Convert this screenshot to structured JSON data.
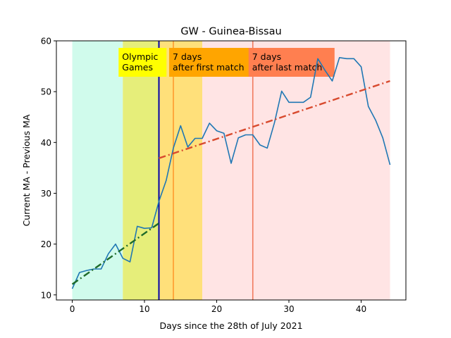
{
  "chart_data": {
    "type": "line",
    "title": "GW - Guinea-Bissau",
    "xlabel": "Days since the 28th of July 2021",
    "ylabel": "Current MA - Previous MA",
    "xlim": [
      -2.2,
      46.2
    ],
    "ylim": [
      9,
      60
    ],
    "xticks": [
      0,
      10,
      20,
      30,
      40
    ],
    "yticks": [
      10,
      20,
      30,
      40,
      50,
      60
    ],
    "series": [
      {
        "name": "MA difference",
        "color": "#1f77b4",
        "x": [
          0,
          1,
          2,
          3,
          4,
          5,
          6,
          7,
          8,
          9,
          10,
          11,
          12,
          13,
          14,
          15,
          16,
          17,
          18,
          19,
          20,
          21,
          22,
          23,
          24,
          25,
          26,
          27,
          28,
          29,
          30,
          31,
          32,
          33,
          34,
          35,
          36,
          37,
          38,
          39,
          40,
          41,
          42,
          43,
          44
        ],
        "values": [
          11.2,
          14.4,
          14.8,
          15.1,
          15.1,
          18.1,
          20.0,
          17.2,
          16.5,
          23.5,
          23.1,
          23.2,
          28.4,
          32.5,
          38.9,
          43.3,
          39.1,
          40.8,
          40.8,
          43.8,
          42.3,
          41.8,
          35.9,
          40.9,
          41.5,
          41.5,
          39.5,
          38.9,
          43.9,
          50.1,
          47.9,
          47.9,
          47.9,
          48.9,
          56.5,
          54.2,
          52.1,
          56.7,
          56.5,
          56.5,
          54.9,
          47.1,
          44.4,
          40.9,
          35.6
        ]
      }
    ],
    "trendlines": [
      {
        "name": "pre-olympics trend",
        "color": "#1e6b2a",
        "x": [
          0,
          12
        ],
        "values": [
          12.1,
          24.1
        ]
      },
      {
        "name": "post-olympics trend",
        "color": "#d84a2e",
        "x": [
          12,
          44
        ],
        "values": [
          36.9,
          52.1
        ]
      }
    ],
    "regions": [
      {
        "name": "before games",
        "x": [
          0,
          7
        ],
        "color": "#d0fbec"
      },
      {
        "name": "olympic games",
        "x": [
          7,
          12
        ],
        "color": "#e6ee7a"
      },
      {
        "name": "after first match",
        "x": [
          12,
          18
        ],
        "color": "#ffe07a"
      },
      {
        "name": "after last match",
        "x": [
          18,
          44
        ],
        "color": "#ffe4e4"
      }
    ],
    "vlines": [
      {
        "name": "olympic start",
        "x": 12,
        "color": "#0000aa"
      },
      {
        "name": "first match +7",
        "x": 14,
        "color": "#ff9a2e"
      },
      {
        "name": "last match +7",
        "x": 25,
        "color": "#f07a5e"
      }
    ],
    "annotations": [
      {
        "name": "olympic-games",
        "lines": [
          "Olympic",
          "Games"
        ],
        "bg": "#ffff00",
        "x": 7
      },
      {
        "name": "after-first-match",
        "lines": [
          "7 days",
          "after first match"
        ],
        "bg": "#ffa500",
        "x": 14
      },
      {
        "name": "after-last-match",
        "lines": [
          "7 days",
          "after last match"
        ],
        "bg": "#ff7f50",
        "x": 25
      }
    ]
  }
}
